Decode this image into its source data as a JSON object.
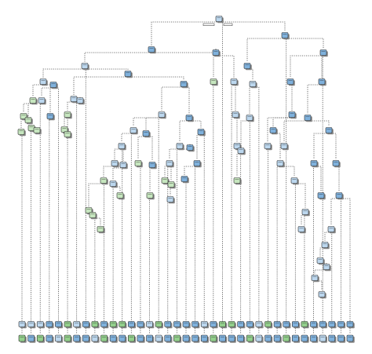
{
  "diagram": {
    "type": "decision-tree",
    "colors": {
      "blue": "#7fb1dc",
      "light-blue": "#bcd7ee",
      "green": "#93cf8c",
      "light-green": "#c6e6bf",
      "edge": "#4a4a4a",
      "node-border": "#2b2b2b",
      "shadow": "#8a8a8a",
      "background": "#ffffff"
    },
    "leaf_rows": {
      "upper_count": 37,
      "lower_count": 37,
      "upper_classes": [
        "light-blue",
        "light-blue",
        "light-blue",
        "blue",
        "blue",
        "green",
        "light-blue",
        "blue",
        "green",
        "blue",
        "green",
        "green",
        "blue",
        "blue",
        "light-blue",
        "green",
        "blue",
        "blue",
        "blue",
        "blue",
        "light-blue",
        "blue",
        "green",
        "green",
        "blue",
        "blue",
        "light-blue",
        "green",
        "blue",
        "blue",
        "blue",
        "green",
        "blue",
        "blue",
        "blue",
        "blue",
        "blue"
      ],
      "lower_classes": [
        "green",
        "blue",
        "green",
        "blue",
        "light-blue",
        "green",
        "blue",
        "blue",
        "light-blue",
        "green",
        "blue",
        "blue",
        "green",
        "blue",
        "blue",
        "light-blue",
        "blue",
        "green",
        "blue",
        "blue",
        "blue",
        "green",
        "blue",
        "blue",
        "blue",
        "green",
        "light-blue",
        "blue",
        "blue",
        "green",
        "blue",
        "blue",
        "blue",
        "light-blue",
        "blue",
        "blue",
        "blue"
      ]
    }
  }
}
